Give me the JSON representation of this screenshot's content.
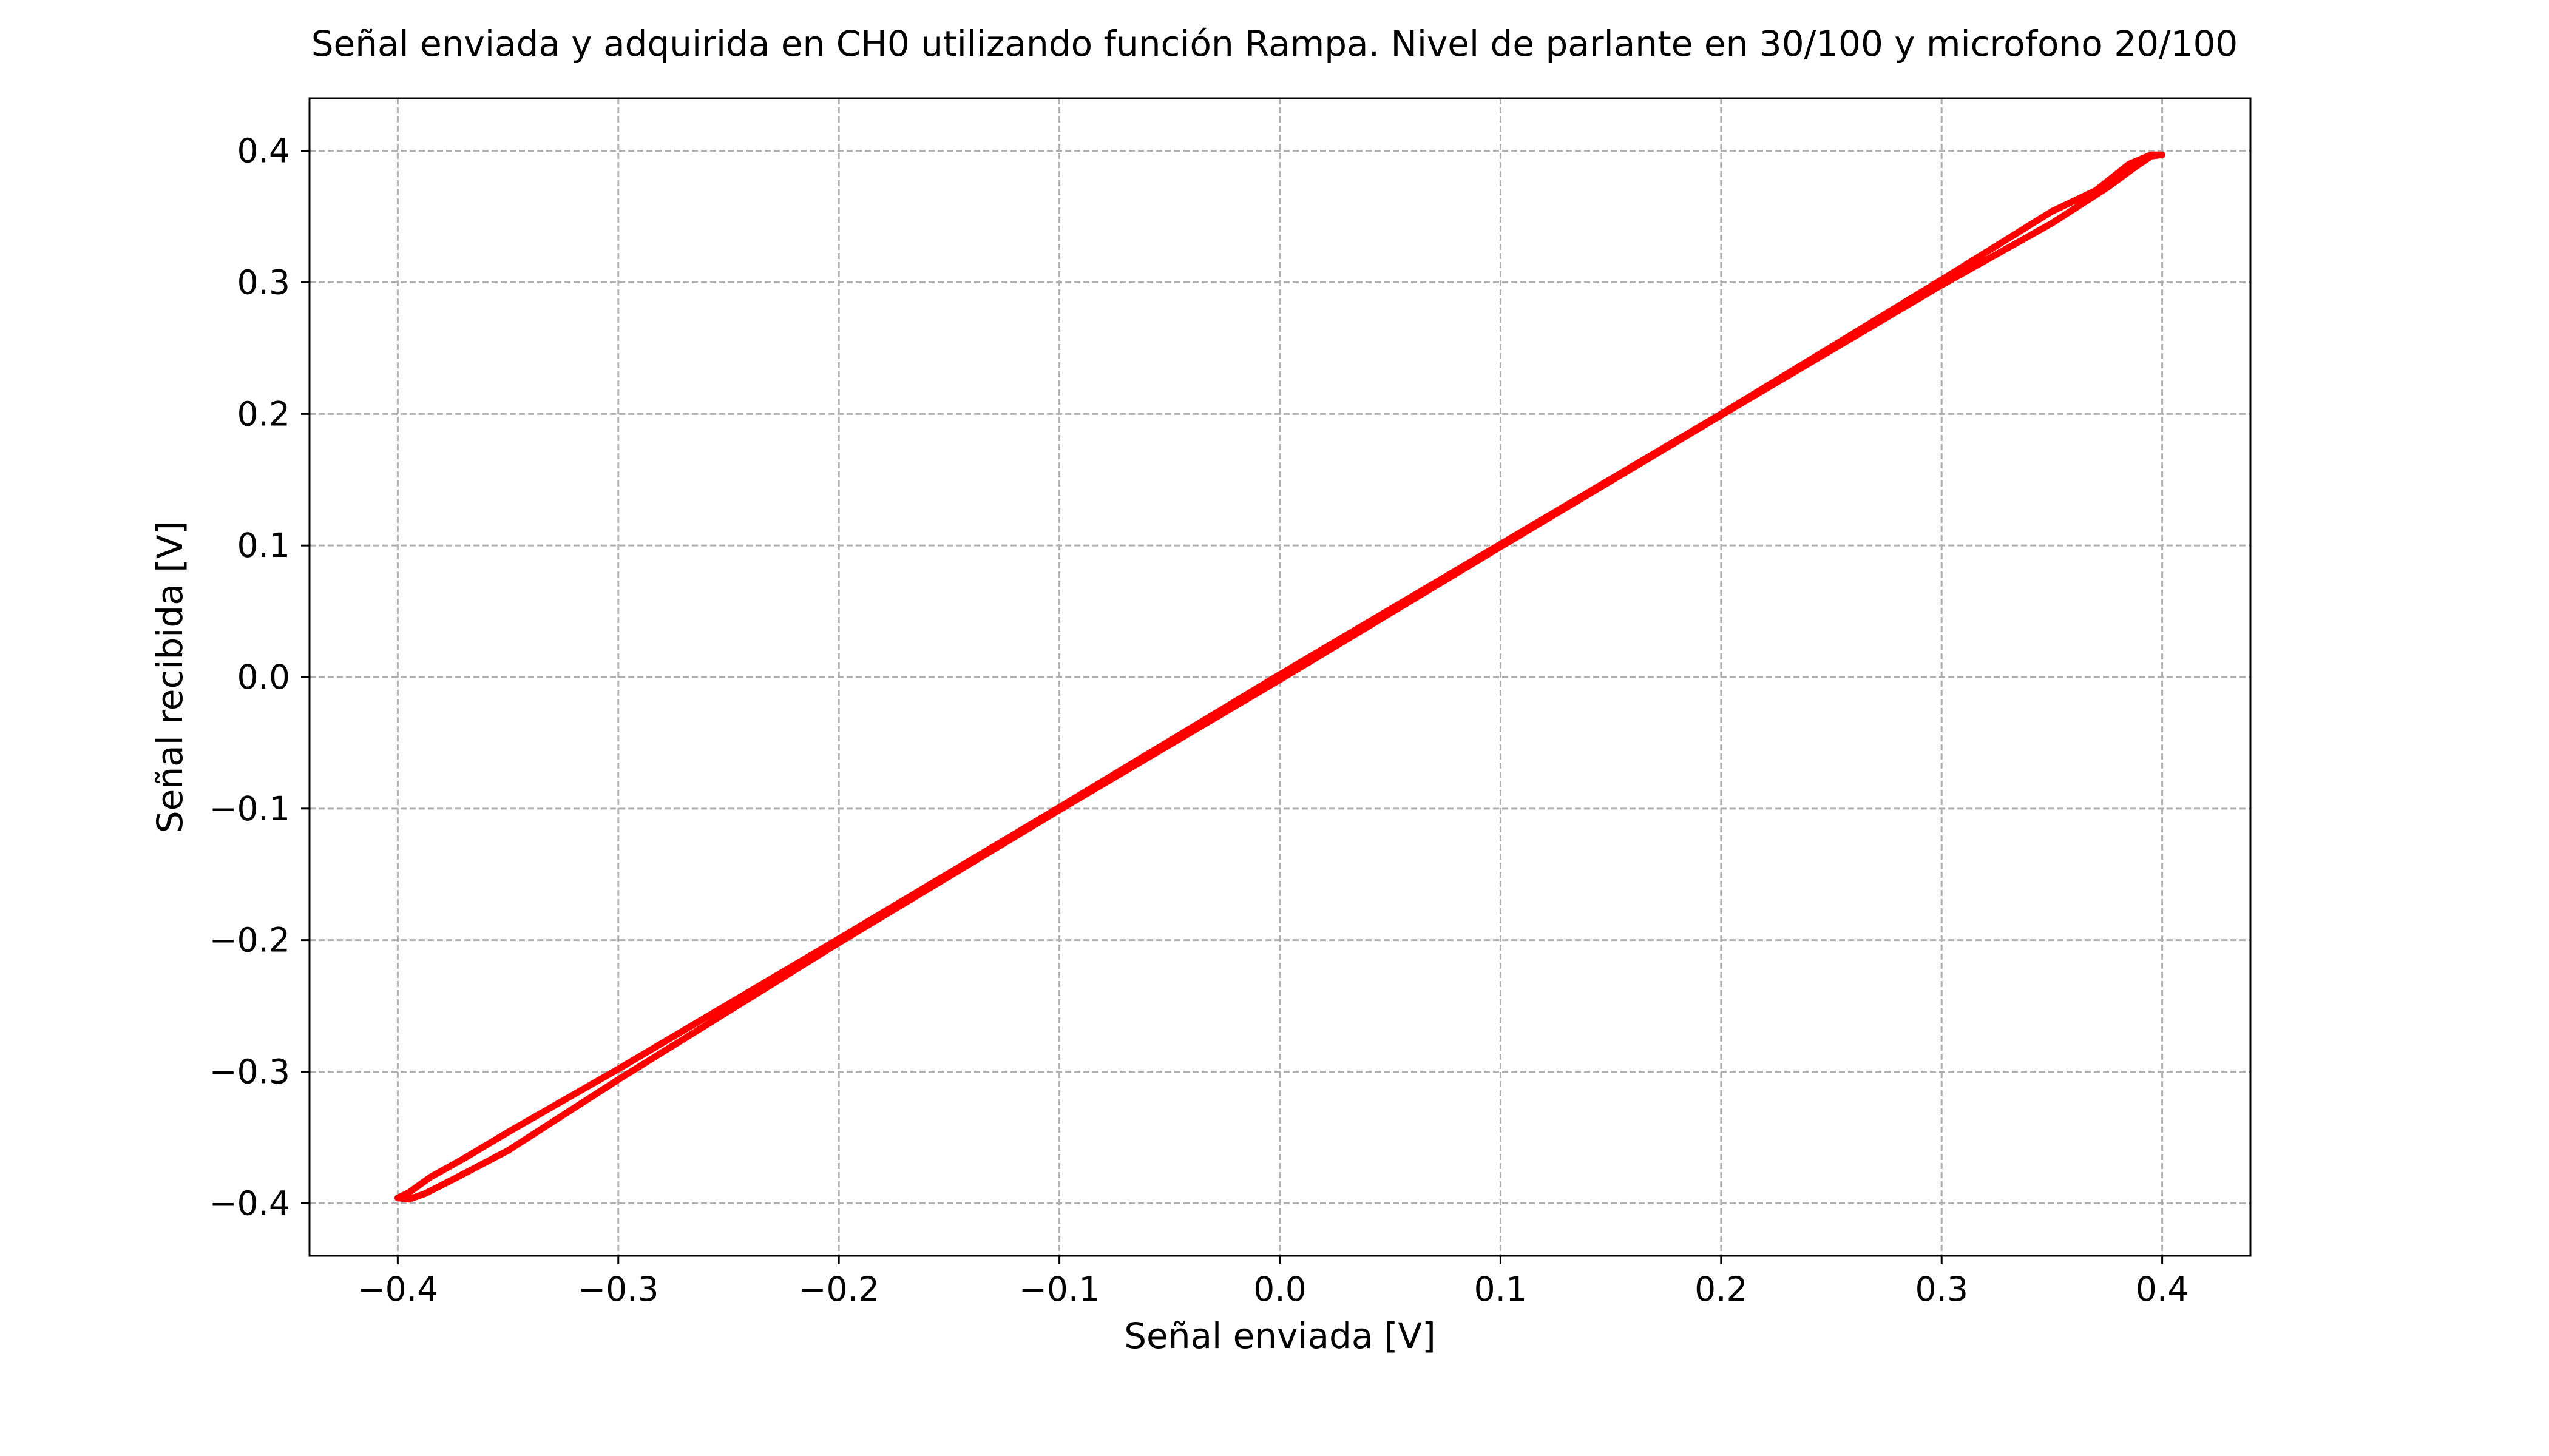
{
  "chart_data": {
    "type": "line",
    "title": "Señal enviada y adquirida en CH0 utilizando función Rampa. Nivel de parlante en 30/100 y microfono 20/100",
    "xlabel": "Señal enviada [V]",
    "ylabel": "Señal recibida [V]",
    "xlim": [
      -0.44,
      0.44
    ],
    "ylim": [
      -0.44,
      0.44
    ],
    "grid": true,
    "xticks": [
      -0.4,
      -0.3,
      -0.2,
      -0.1,
      0.0,
      0.1,
      0.2,
      0.3,
      0.4
    ],
    "yticks": [
      -0.4,
      -0.3,
      -0.2,
      -0.1,
      0.0,
      0.1,
      0.2,
      0.3,
      0.4
    ],
    "xtick_labels": [
      "−0.4",
      "−0.3",
      "−0.2",
      "−0.1",
      "0.0",
      "0.1",
      "0.2",
      "0.3",
      "0.4"
    ],
    "ytick_labels": [
      "−0.4",
      "−0.3",
      "−0.2",
      "−0.1",
      "0.0",
      "0.1",
      "0.2",
      "0.3",
      "0.4"
    ],
    "series": [
      {
        "color": "#ff0000",
        "x": [
          -0.4,
          -0.395,
          -0.388,
          -0.375,
          -0.35,
          -0.3,
          -0.2,
          -0.1,
          0.0,
          0.1,
          0.2,
          0.3,
          0.35,
          0.375,
          0.388,
          0.395,
          0.4,
          0.395,
          0.385,
          0.37,
          0.35,
          0.3,
          0.2,
          0.1,
          0.0,
          -0.1,
          -0.2,
          -0.3,
          -0.35,
          -0.37,
          -0.385,
          -0.395,
          -0.4
        ],
        "y": [
          -0.396,
          -0.397,
          -0.393,
          -0.382,
          -0.36,
          -0.306,
          -0.202,
          -0.101,
          -0.002,
          0.099,
          0.199,
          0.298,
          0.345,
          0.372,
          0.388,
          0.396,
          0.397,
          0.397,
          0.39,
          0.37,
          0.354,
          0.302,
          0.2,
          0.101,
          0.002,
          -0.099,
          -0.199,
          -0.298,
          -0.346,
          -0.366,
          -0.38,
          -0.392,
          -0.396
        ]
      }
    ]
  }
}
